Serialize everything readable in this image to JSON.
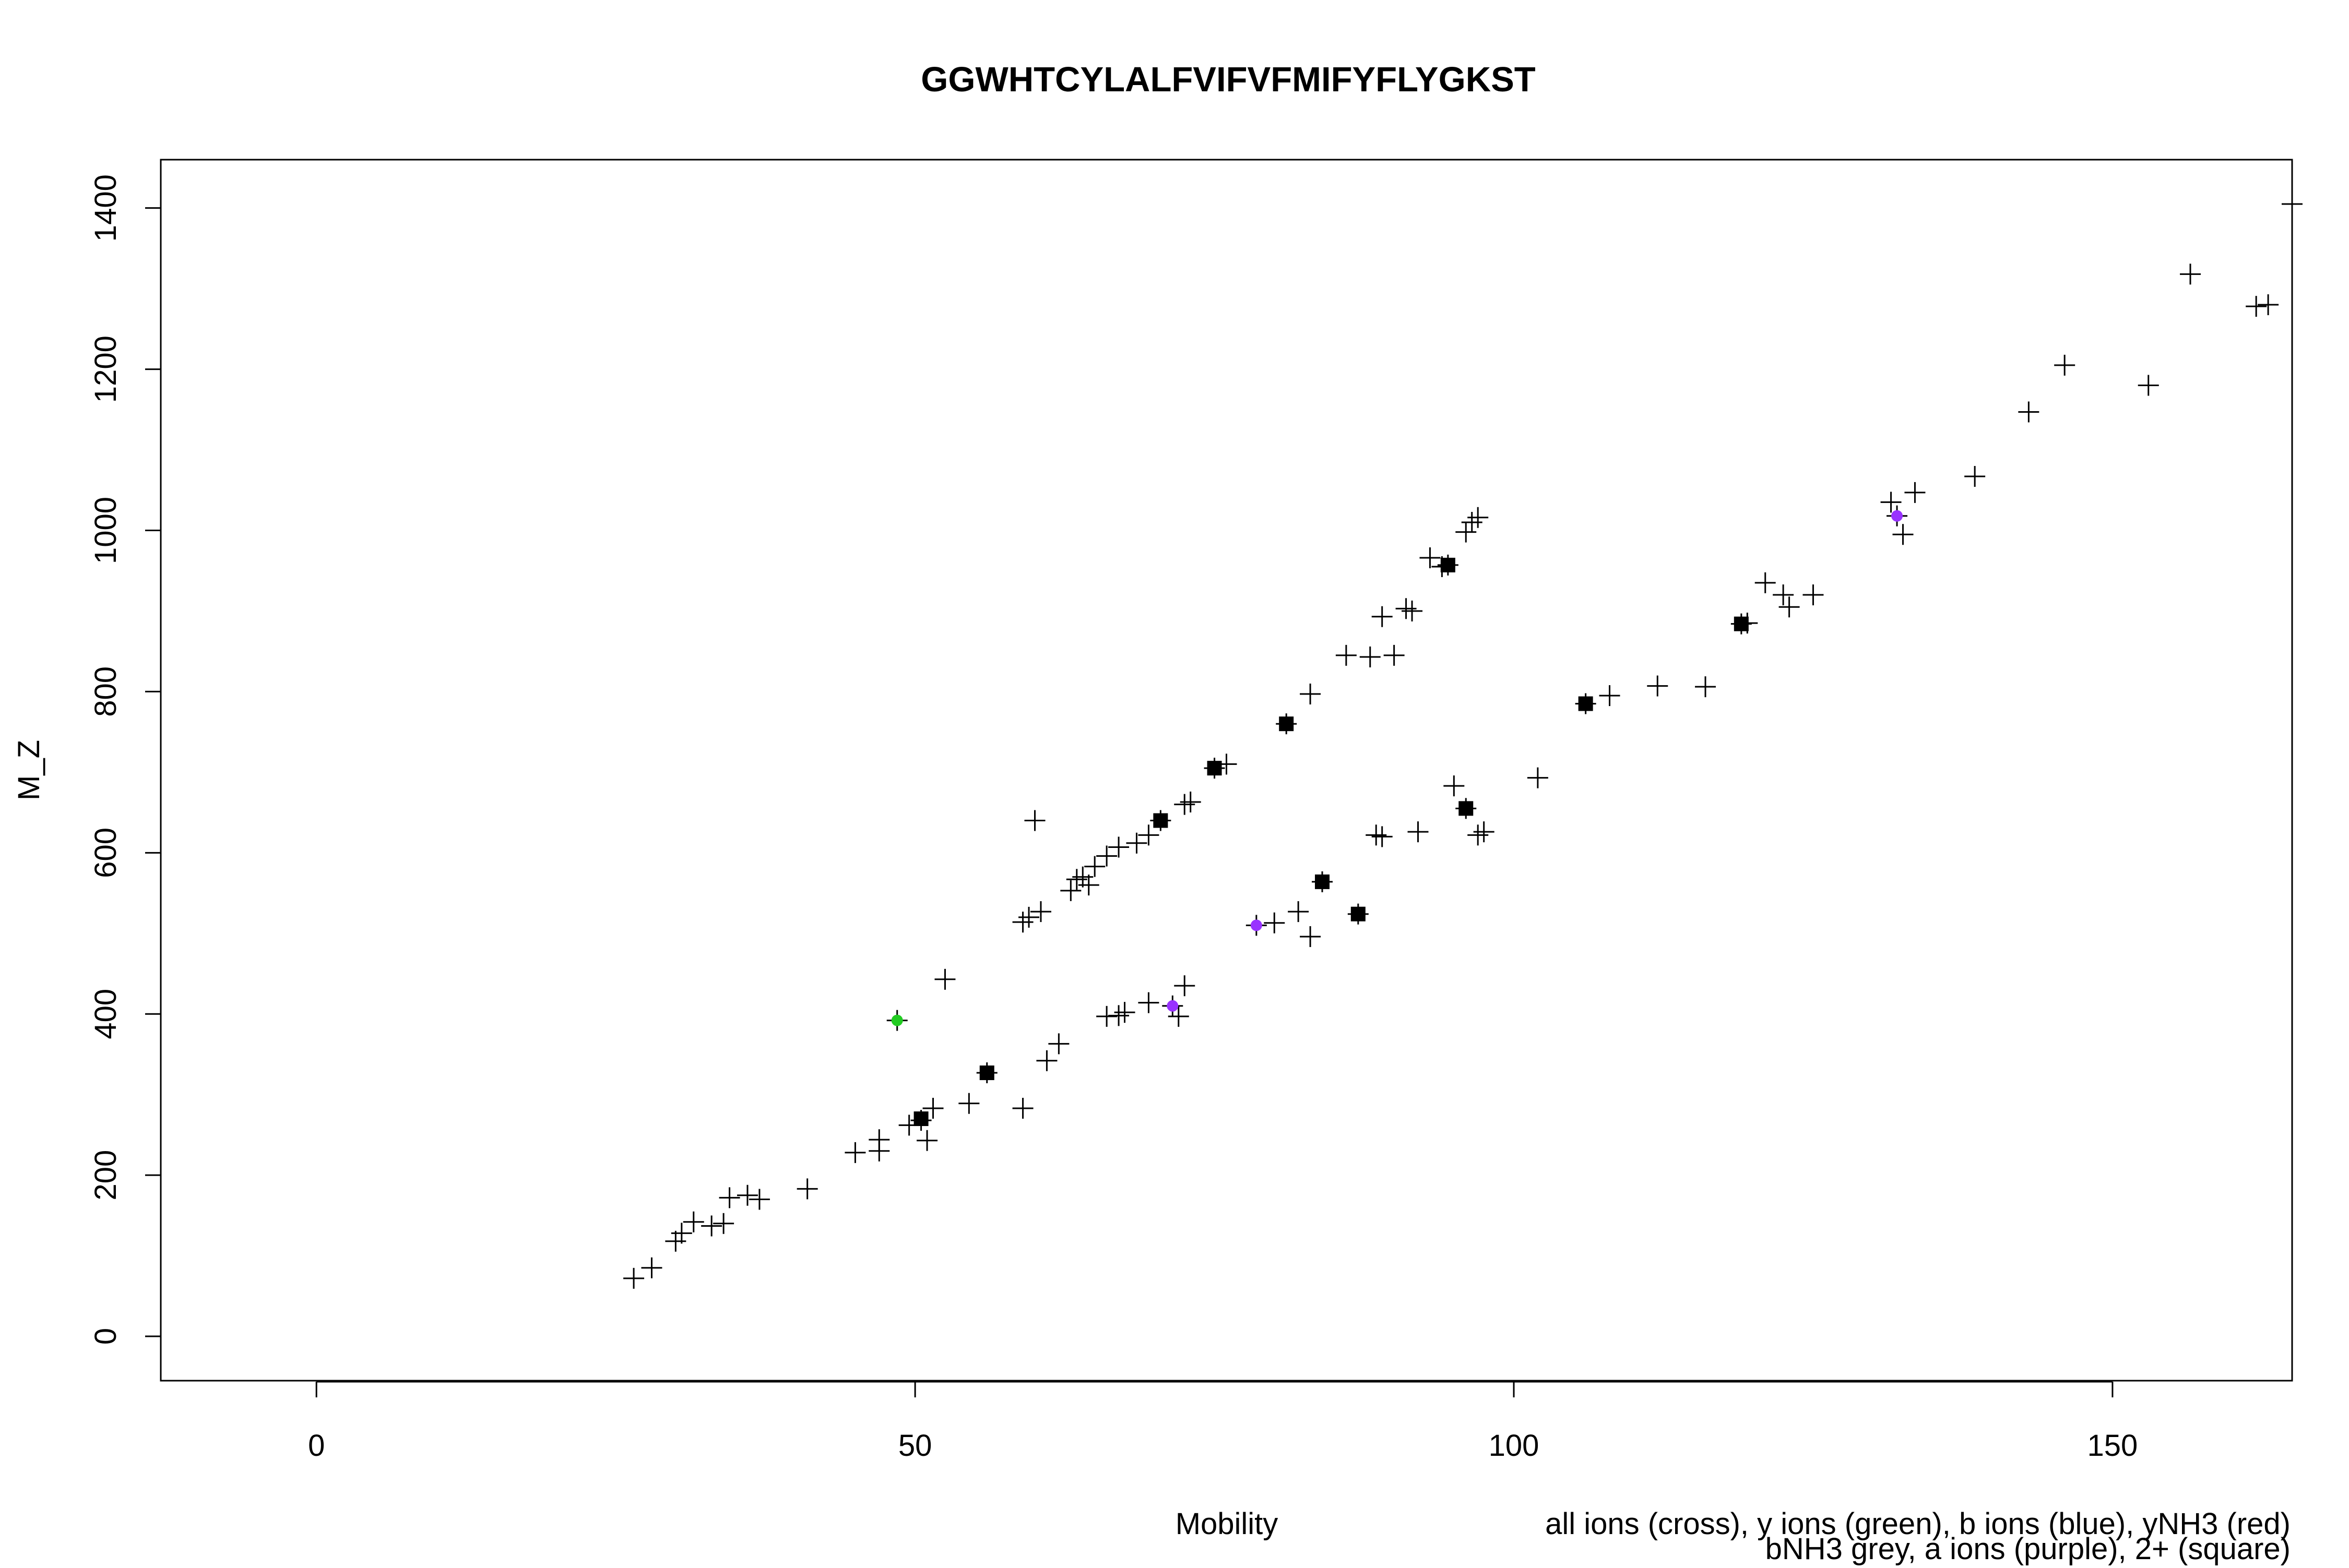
{
  "chart_data": {
    "type": "scatter",
    "title": "GGWHTCYLALFVIFVFMIFYFLYGKST",
    "xlabel": "Mobility",
    "ylabel": "M_Z",
    "xlim": [
      -13,
      165
    ],
    "ylim": [
      -55,
      1460
    ],
    "x_ticks": [
      0,
      50,
      100,
      150
    ],
    "y_ticks": [
      0,
      200,
      400,
      600,
      800,
      1000,
      1200,
      1400
    ],
    "grid": false,
    "legend_position": "bottom-right",
    "legend_text": [
      "all ions (cross), y ions (green), b ions (blue), yNH3 (red)",
      "bNH3 grey, a ions (purple), 2+ (square)"
    ],
    "series": [
      {
        "marker": "cross",
        "color": "#000000",
        "points": [
          [
            26.5,
            72
          ],
          [
            28,
            85
          ],
          [
            30,
            118
          ],
          [
            30.5,
            128
          ],
          [
            31.5,
            142
          ],
          [
            33,
            137
          ],
          [
            34,
            140
          ],
          [
            34.5,
            172
          ],
          [
            36,
            175
          ],
          [
            37,
            170
          ],
          [
            41,
            183
          ],
          [
            45,
            228
          ],
          [
            47,
            230
          ],
          [
            47,
            244
          ],
          [
            49.5,
            262
          ],
          [
            51,
            243
          ],
          [
            51.5,
            283
          ],
          [
            54.5,
            289
          ],
          [
            56,
            327
          ],
          [
            59,
            283
          ],
          [
            61,
            342
          ],
          [
            62,
            363
          ],
          [
            66,
            397
          ],
          [
            67,
            398
          ],
          [
            67.5,
            402
          ],
          [
            69.5,
            414
          ],
          [
            72,
            397
          ],
          [
            72.5,
            435
          ],
          [
            50.5,
            268
          ],
          [
            52.5,
            443
          ],
          [
            48.5,
            392
          ],
          [
            59,
            514
          ],
          [
            59.5,
            520
          ],
          [
            60.5,
            527
          ],
          [
            60,
            640
          ],
          [
            63,
            553
          ],
          [
            63.5,
            567
          ],
          [
            64,
            570
          ],
          [
            64.5,
            560
          ],
          [
            65,
            583
          ],
          [
            66,
            596
          ],
          [
            67,
            607
          ],
          [
            68.5,
            612
          ],
          [
            69.5,
            622
          ],
          [
            70.5,
            640
          ],
          [
            72.5,
            660
          ],
          [
            73,
            663
          ],
          [
            75,
            705
          ],
          [
            76,
            710
          ],
          [
            81,
            760
          ],
          [
            83,
            797
          ],
          [
            86,
            845
          ],
          [
            88,
            843
          ],
          [
            89,
            893
          ],
          [
            90,
            845
          ],
          [
            91,
            903
          ],
          [
            91.5,
            900
          ],
          [
            93,
            966
          ],
          [
            94,
            955
          ],
          [
            94.5,
            957
          ],
          [
            96,
            998
          ],
          [
            96.5,
            1010
          ],
          [
            97,
            1016
          ],
          [
            71.5,
            410
          ],
          [
            78.5,
            510
          ],
          [
            80,
            513
          ],
          [
            82,
            527
          ],
          [
            83,
            496
          ],
          [
            84,
            564
          ],
          [
            87,
            524
          ],
          [
            88.5,
            622
          ],
          [
            89,
            620
          ],
          [
            92,
            626
          ],
          [
            95,
            683
          ],
          [
            96,
            655
          ],
          [
            97,
            622
          ],
          [
            97.5,
            626
          ],
          [
            102,
            693
          ],
          [
            106,
            785
          ],
          [
            108,
            795
          ],
          [
            112,
            807
          ],
          [
            116,
            806
          ],
          [
            119,
            884
          ],
          [
            119.5,
            885
          ],
          [
            121,
            935
          ],
          [
            122.5,
            920
          ],
          [
            123,
            905
          ],
          [
            125,
            920
          ],
          [
            131.5,
            1035
          ],
          [
            132,
            1018
          ],
          [
            132.5,
            995
          ],
          [
            133.5,
            1047
          ],
          [
            138.5,
            1067
          ],
          [
            143,
            1147
          ],
          [
            146,
            1205
          ],
          [
            153,
            1180
          ],
          [
            156.5,
            1318
          ],
          [
            162,
            1278
          ],
          [
            163,
            1280
          ],
          [
            165,
            1405
          ]
        ]
      },
      {
        "marker": "square",
        "color": "#000000",
        "points": [
          [
            50.5,
            270
          ],
          [
            56,
            327
          ],
          [
            70.5,
            640
          ],
          [
            75,
            705
          ],
          [
            81,
            760
          ],
          [
            84,
            564
          ],
          [
            87,
            524
          ],
          [
            94.5,
            957
          ],
          [
            96,
            655
          ],
          [
            106,
            785
          ],
          [
            119,
            884
          ]
        ]
      },
      {
        "marker": "dot",
        "color": "#22cc22",
        "points": [
          [
            48.5,
            392
          ]
        ]
      },
      {
        "marker": "dot",
        "color": "#9933ff",
        "points": [
          [
            71.5,
            410
          ],
          [
            78.5,
            510
          ],
          [
            132,
            1018
          ]
        ]
      }
    ]
  }
}
